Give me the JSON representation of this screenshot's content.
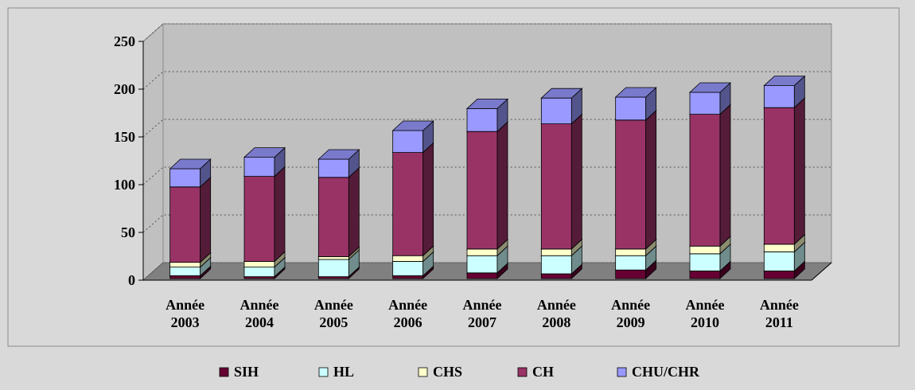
{
  "chart_data": {
    "type": "bar3d_stacked",
    "categories": [
      "Année 2003",
      "Année 2004",
      "Année 2005",
      "Année 2006",
      "Année 2007",
      "Année 2008",
      "Année 2009",
      "Année 2010",
      "Année 2011"
    ],
    "series": [
      {
        "name": "SIH",
        "color": "#660033",
        "values": [
          3,
          2,
          2,
          3,
          6,
          5,
          9,
          8,
          8
        ]
      },
      {
        "name": "HL",
        "color": "#ccffff",
        "values": [
          9,
          10,
          18,
          15,
          18,
          19,
          15,
          18,
          20
        ]
      },
      {
        "name": "CHS",
        "color": "#ffffcc",
        "values": [
          5,
          6,
          3,
          6,
          7,
          7,
          7,
          8,
          8
        ]
      },
      {
        "name": "CH",
        "color": "#993366",
        "values": [
          79,
          89,
          83,
          108,
          123,
          131,
          135,
          138,
          143
        ]
      },
      {
        "name": "CHU/CHR",
        "color": "#9999ff",
        "values": [
          19,
          20,
          19,
          23,
          24,
          27,
          24,
          23,
          23
        ]
      }
    ],
    "ylim": [
      0,
      250
    ],
    "yticks": [
      0,
      50,
      100,
      150,
      200,
      250
    ],
    "grid": true,
    "legend": "bottom"
  }
}
